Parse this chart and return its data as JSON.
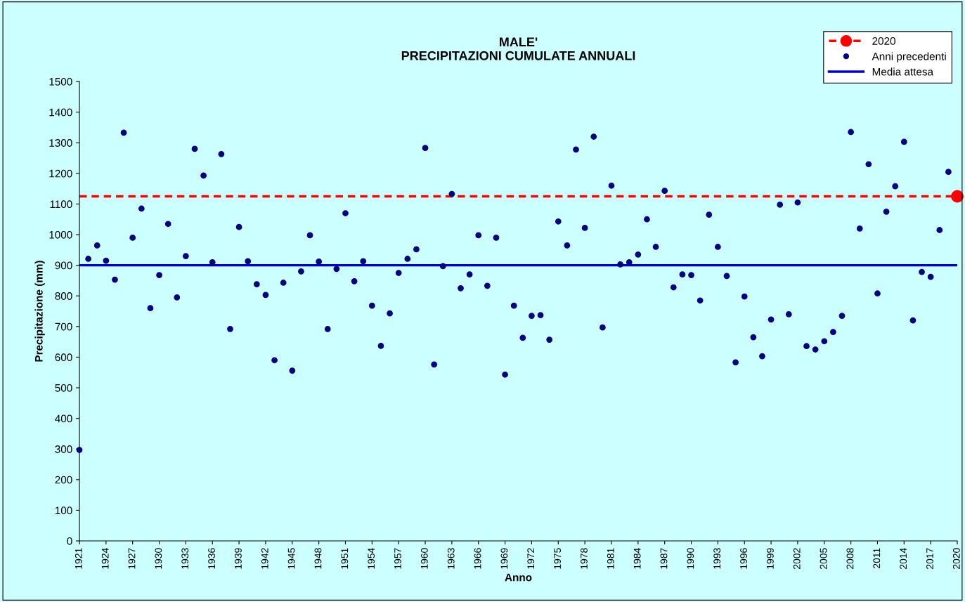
{
  "chart_data": {
    "type": "scatter",
    "title": "MALE'\nPRECIPITAZIONI CUMULATE ANNUALI",
    "xlabel": "Anno",
    "ylabel": "Precipitazione (mm)",
    "series": [
      {
        "name": "2020",
        "color": "#ff0000",
        "x": [
          2020
        ],
        "values": [
          1125
        ]
      },
      {
        "name": "Anni precedenti",
        "color": "#000080",
        "x": [
          1921,
          1922,
          1923,
          1924,
          1925,
          1926,
          1927,
          1928,
          1929,
          1930,
          1931,
          1932,
          1933,
          1934,
          1935,
          1936,
          1937,
          1938,
          1939,
          1940,
          1941,
          1942,
          1943,
          1944,
          1945,
          1946,
          1947,
          1948,
          1949,
          1950,
          1951,
          1952,
          1953,
          1954,
          1955,
          1956,
          1957,
          1958,
          1959,
          1960,
          1961,
          1962,
          1963,
          1964,
          1965,
          1966,
          1967,
          1968,
          1969,
          1970,
          1971,
          1972,
          1973,
          1974,
          1975,
          1976,
          1977,
          1978,
          1979,
          1980,
          1981,
          1982,
          1983,
          1984,
          1985,
          1986,
          1987,
          1988,
          1989,
          1990,
          1991,
          1992,
          1993,
          1994,
          1995,
          1996,
          1997,
          1998,
          1999,
          2000,
          2001,
          2002,
          2003,
          2004,
          2005,
          2006,
          2007,
          2008,
          2009,
          2010,
          2011,
          2012,
          2013,
          2014,
          2015,
          2016,
          2017,
          2018,
          2019
        ],
        "values": [
          297,
          921,
          965,
          915,
          853,
          1333,
          990,
          1085,
          760,
          868,
          1035,
          795,
          930,
          1280,
          1193,
          910,
          1263,
          692,
          1025,
          913,
          838,
          803,
          590,
          843,
          556,
          880,
          998,
          912,
          692,
          888,
          1070,
          848,
          913,
          768,
          637,
          743,
          875,
          921,
          952,
          1283,
          576,
          897,
          1133,
          825,
          870,
          998,
          833,
          990,
          543,
          768,
          663,
          735,
          737,
          657,
          1043,
          965,
          1278,
          1022,
          1320,
          697,
          1160,
          903,
          910,
          935,
          1050,
          960,
          1143,
          828,
          870,
          868,
          785,
          1065,
          960,
          865,
          583,
          798,
          665,
          603,
          723,
          1098,
          740,
          1105,
          636,
          625,
          652,
          682,
          735,
          1335,
          1020,
          1230,
          808,
          1075,
          1158,
          1303,
          720,
          878,
          862,
          1015,
          1205
        ]
      }
    ],
    "ref_lines": [
      {
        "axis": "y",
        "value": 1125,
        "color": "#ff0000",
        "line_style": "dashed"
      },
      {
        "axis": "y",
        "value": 900,
        "label": "Media attesa",
        "color": "#0000cc",
        "line_style": "solid"
      }
    ],
    "xlim": [
      1921,
      2020
    ],
    "xticks": [
      1921,
      1924,
      1927,
      1930,
      1933,
      1936,
      1939,
      1942,
      1945,
      1948,
      1951,
      1954,
      1957,
      1960,
      1963,
      1966,
      1969,
      1972,
      1975,
      1978,
      1981,
      1984,
      1987,
      1990,
      1993,
      1996,
      1999,
      2002,
      2005,
      2008,
      2011,
      2014,
      2017,
      2020
    ],
    "ylim": [
      0,
      1500
    ],
    "yticks": [
      0,
      100,
      200,
      300,
      400,
      500,
      600,
      700,
      800,
      900,
      1000,
      1100,
      1200,
      1300,
      1400,
      1500
    ],
    "marker": "circle",
    "grid": false,
    "legend": "top right"
  }
}
